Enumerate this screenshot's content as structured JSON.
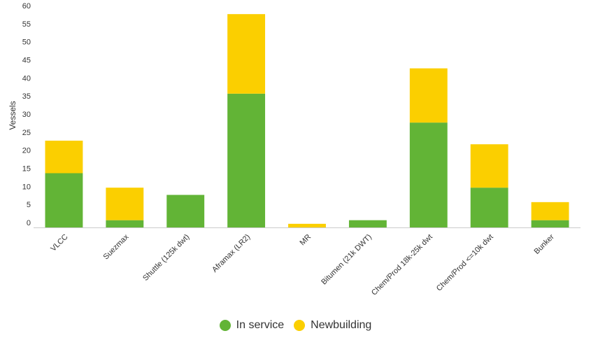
{
  "chart_data": {
    "type": "bar",
    "stacked": true,
    "categories": [
      "VLCC",
      "Suezmax",
      "Shuttle (125k dwt)",
      "Aframax (LR2)",
      "MR",
      "Bitumen (21k DWT)",
      "Chem/Prod 18k-25k dwt",
      "Chem/Prod <=10k dwt",
      "Bunker"
    ],
    "series": [
      {
        "name": "In service",
        "color": "#62b436",
        "values": [
          15,
          2,
          9,
          37,
          0,
          2,
          29,
          11,
          2
        ]
      },
      {
        "name": "Newbuilding",
        "color": "#fbcf00",
        "values": [
          9,
          9,
          0,
          22,
          1,
          0,
          15,
          12,
          5
        ]
      }
    ],
    "ylabel": "Vessels",
    "ylim": [
      0,
      60
    ],
    "yticks": [
      0,
      5,
      10,
      15,
      20,
      25,
      30,
      35,
      40,
      45,
      50,
      55,
      60
    ],
    "legend_position": "bottom"
  }
}
